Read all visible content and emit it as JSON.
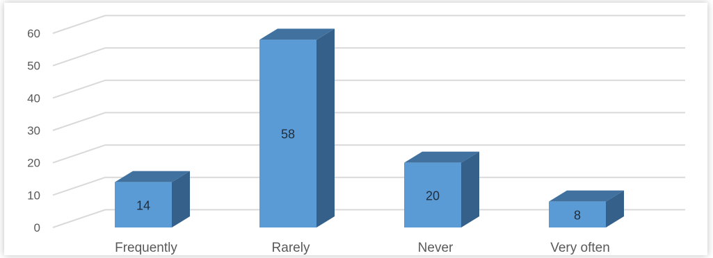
{
  "chart_data": {
    "type": "bar",
    "categories": [
      "Frequently",
      "Rarely",
      "Never",
      "Very often"
    ],
    "values": [
      14,
      58,
      20,
      8
    ],
    "data_labels": [
      "14",
      "58",
      "20",
      "8"
    ],
    "y_ticks": [
      "0",
      "10",
      "20",
      "30",
      "40",
      "50",
      "60"
    ],
    "ylim": [
      0,
      60
    ],
    "grid": true,
    "legend": "none",
    "style": "3d-column",
    "colors": {
      "bar_front": "#5b9bd5",
      "bar_side": "#34608a",
      "bar_top": "#41729f",
      "grid": "#d9d9d9",
      "text": "#595959"
    }
  }
}
